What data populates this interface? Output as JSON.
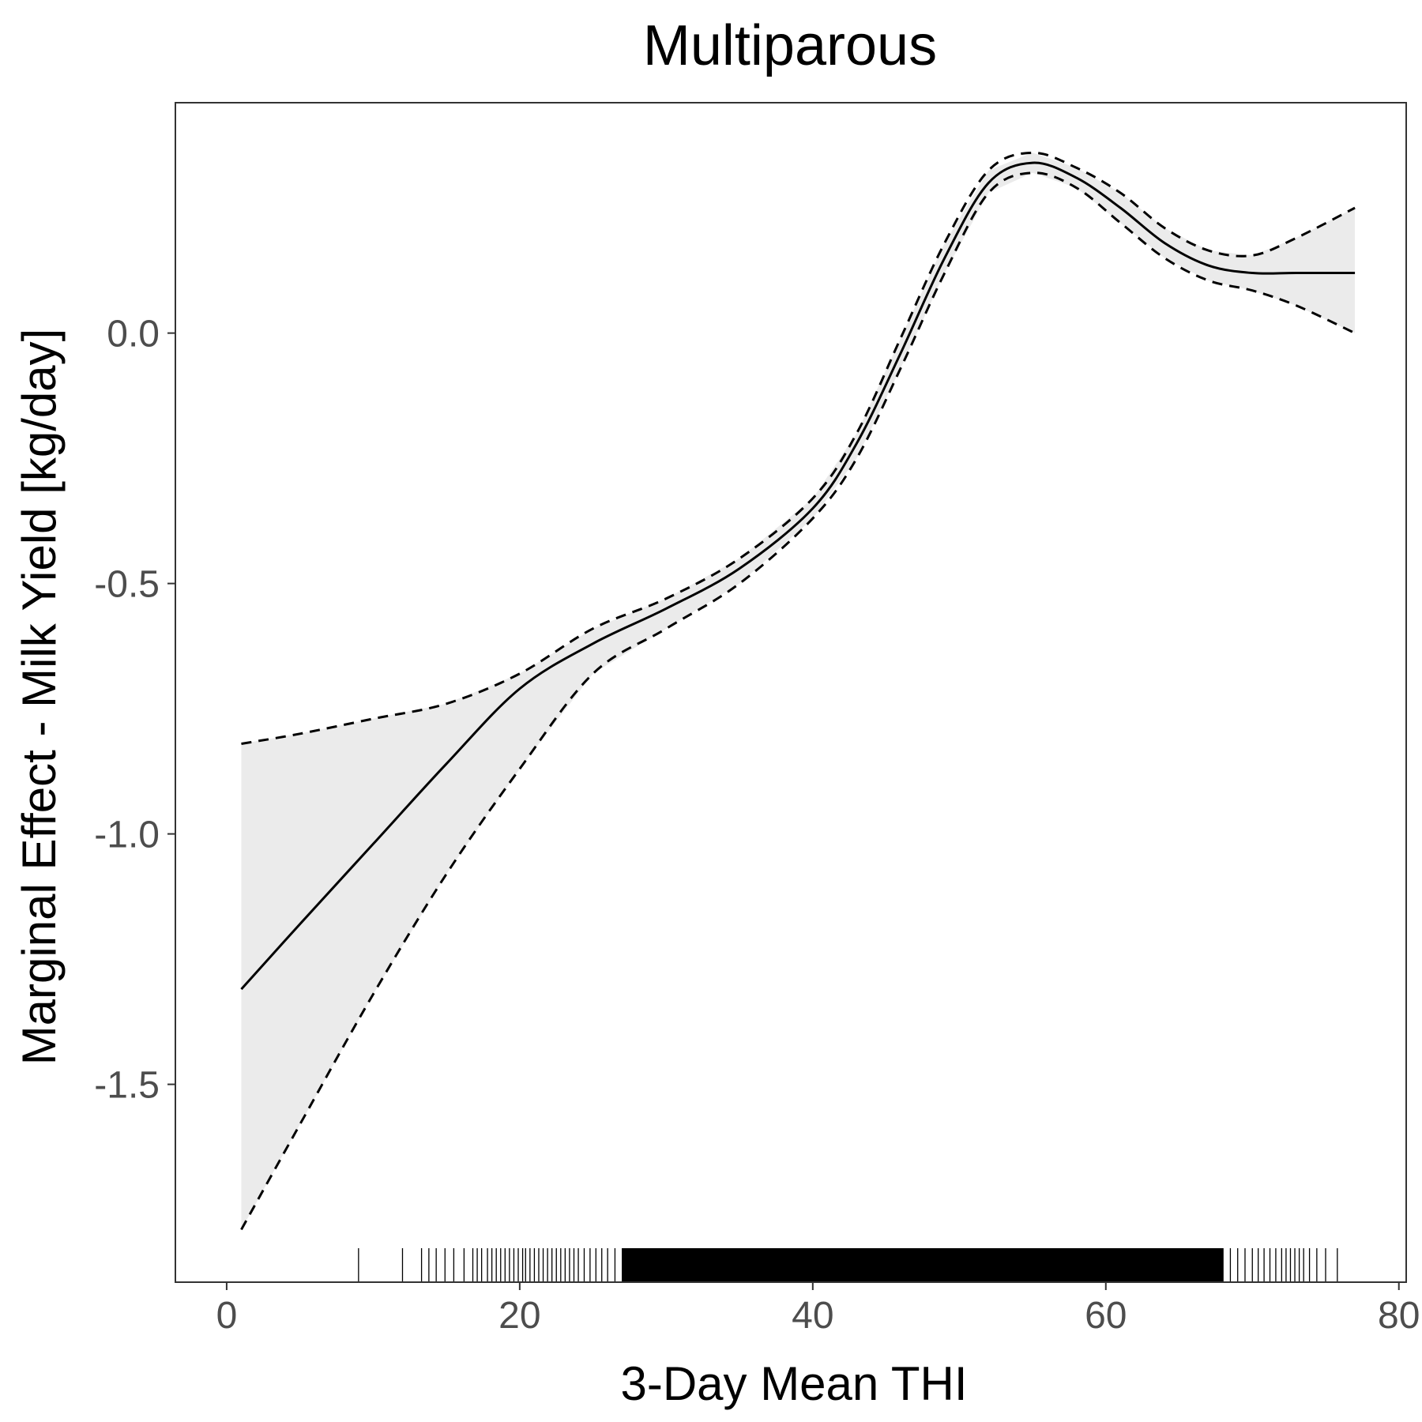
{
  "chart_data": {
    "type": "line",
    "title": "Multiparous",
    "xlabel": "3-Day Mean THI",
    "ylabel": "Marginal Effect - Milk Yield [kg/day]",
    "xlim": [
      -3.5,
      80.5
    ],
    "ylim": [
      -1.895,
      0.46
    ],
    "xticks": [
      0,
      20,
      40,
      60,
      80
    ],
    "xtick_labels": [
      "0",
      "20",
      "40",
      "60",
      "80"
    ],
    "yticks": [
      -1.5,
      -1.0,
      -0.5,
      0.0
    ],
    "ytick_labels": [
      "-1.5",
      "-1.0",
      "-0.5",
      "0.0"
    ],
    "grid": false,
    "legend": "none",
    "colors": {
      "line": "#000000",
      "band": "#ebebeb",
      "tick": "#4d4d4d",
      "frame": "#333333"
    },
    "series": [
      {
        "role": "estimate",
        "style": "solid",
        "x": [
          1,
          5,
          10,
          15,
          20,
          25,
          30,
          35,
          40,
          43,
          46,
          49,
          52,
          55,
          58,
          61,
          64,
          67,
          70,
          73,
          77
        ],
        "y": [
          -1.31,
          -1.18,
          -1.02,
          -0.86,
          -0.71,
          -0.62,
          -0.55,
          -0.47,
          -0.35,
          -0.22,
          -0.04,
          0.15,
          0.3,
          0.34,
          0.31,
          0.25,
          0.18,
          0.135,
          0.12,
          0.12,
          0.12
        ]
      },
      {
        "role": "upper",
        "style": "dashed",
        "x": [
          1,
          5,
          10,
          15,
          20,
          25,
          30,
          35,
          40,
          43,
          46,
          49,
          52,
          55,
          58,
          61,
          64,
          67,
          70,
          73,
          77
        ],
        "y": [
          -0.82,
          -0.8,
          -0.77,
          -0.74,
          -0.68,
          -0.59,
          -0.53,
          -0.45,
          -0.33,
          -0.2,
          -0.01,
          0.18,
          0.325,
          0.36,
          0.33,
          0.28,
          0.21,
          0.165,
          0.155,
          0.19,
          0.25
        ]
      },
      {
        "role": "lower",
        "style": "dashed",
        "x": [
          1,
          5,
          10,
          15,
          20,
          25,
          30,
          35,
          40,
          43,
          46,
          49,
          52,
          55,
          58,
          61,
          64,
          67,
          70,
          73,
          77
        ],
        "y": [
          -1.79,
          -1.58,
          -1.32,
          -1.08,
          -0.87,
          -0.68,
          -0.59,
          -0.5,
          -0.37,
          -0.25,
          -0.07,
          0.12,
          0.28,
          0.32,
          0.29,
          0.22,
          0.15,
          0.105,
          0.085,
          0.055,
          0
        ]
      }
    ],
    "rug": [
      9,
      12,
      13.3,
      13.8,
      14.3,
      14.9,
      15.5,
      16.2,
      16.8,
      17.1,
      17.4,
      17.8,
      18.1,
      18.4,
      18.7,
      19.0,
      19.3,
      19.6,
      19.9,
      20.2,
      20.4,
      20.7,
      21.0,
      21.3,
      21.6,
      21.9,
      22.2,
      22.5,
      22.8,
      23.1,
      23.4,
      23.7,
      24.0,
      24.4,
      24.8,
      25.2,
      25.6,
      26.0,
      26.5,
      27.0,
      27.5,
      28.0,
      28.5,
      29.0,
      29.5,
      30.0,
      30.5,
      31.0,
      31.5,
      32.0,
      32.5,
      33.0,
      33.5,
      34.0,
      34.5,
      35.0,
      35.5,
      36.0,
      36.5,
      37.0,
      37.5,
      38.0,
      38.5,
      39.0,
      39.5,
      40.0,
      40.5,
      41.0,
      41.5,
      42.0,
      42.5,
      43.0,
      43.5,
      44.0,
      44.5,
      45.0,
      45.5,
      46.0,
      46.5,
      47.0,
      47.5,
      48.0,
      48.5,
      49.0,
      49.5,
      50.0,
      50.5,
      51.0,
      51.5,
      52.0,
      52.5,
      53.0,
      53.5,
      54.0,
      54.5,
      55.0,
      55.5,
      56.0,
      56.5,
      57.0,
      57.5,
      58.0,
      58.5,
      59.0,
      59.5,
      60.0,
      60.5,
      61.0,
      61.5,
      62.0,
      62.5,
      63.0,
      63.5,
      64.0,
      64.5,
      65.0,
      65.5,
      66.0,
      66.5,
      67.0,
      67.5,
      68.0,
      68.5,
      69.0,
      69.5,
      70.0,
      70.4,
      70.8,
      71.2,
      71.6,
      72.0,
      72.3,
      72.6,
      72.9,
      73.2,
      73.5,
      73.9,
      74.4,
      75.0,
      75.8
    ]
  }
}
